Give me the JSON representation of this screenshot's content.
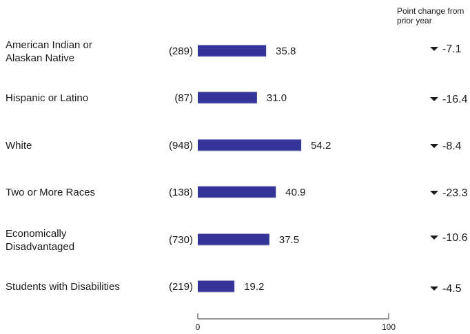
{
  "chart_data": {
    "type": "bar",
    "orientation": "horizontal",
    "change_header": [
      "Point change from",
      "prior year"
    ],
    "categories": [
      [
        "American Indian or",
        "Alaskan Native"
      ],
      [
        "Hispanic or Latino"
      ],
      [
        "White"
      ],
      [
        "Two or More Races"
      ],
      [
        "Economically",
        "Disadvantaged"
      ],
      [
        "Students with Disabilities"
      ]
    ],
    "counts": [
      "(289)",
      "(87)",
      "(948)",
      "(138)",
      "(730)",
      "(219)"
    ],
    "values": [
      35.8,
      31.0,
      54.2,
      40.9,
      37.5,
      19.2
    ],
    "value_labels": [
      "35.8",
      "31.0",
      "54.2",
      "40.9",
      "37.5",
      "19.2"
    ],
    "changes": [
      "-7.1",
      "-16.4",
      "-8.4",
      "-23.3",
      "-10.6",
      "-4.5"
    ],
    "change_direction": "down",
    "xlim": [
      0,
      100
    ],
    "x_ticks": [
      "0",
      "100"
    ],
    "bar_color": "#343499",
    "grid": false
  }
}
